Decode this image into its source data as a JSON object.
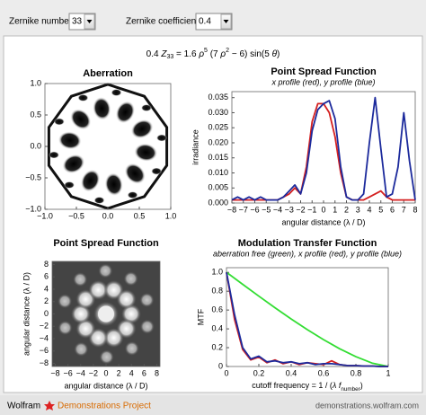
{
  "controls": {
    "zernike_number_label": "Zernike number",
    "zernike_number": "33",
    "zernike_coefficient_label": "Zernike coefficient",
    "zernike_coefficient": "0.4"
  },
  "formula": [
    {
      "text": "0.4 "
    },
    {
      "text": "Z",
      "italic": true
    },
    {
      "text": "33",
      "script": "sub"
    },
    {
      "text": " = 1.6 "
    },
    {
      "text": "ρ",
      "italic": true
    },
    {
      "text": "5",
      "script": "sup"
    },
    {
      "text": " (7 "
    },
    {
      "text": "ρ",
      "italic": true
    },
    {
      "text": "2",
      "script": "sup"
    },
    {
      "text": " − 6) sin(5 "
    },
    {
      "text": "θ",
      "italic": true
    },
    {
      "text": ")"
    }
  ],
  "chart_data": [
    {
      "type": "density",
      "title": "Aberration",
      "xlim": [
        -1,
        1
      ],
      "ylim": [
        -1,
        1
      ],
      "xticks": [
        {
          "value": -1,
          "label": "−1.0"
        },
        {
          "value": -0.5,
          "label": "−0.5"
        },
        {
          "value": 0,
          "label": "0.0"
        },
        {
          "value": 0.5,
          "label": "0.5"
        },
        {
          "value": 1,
          "label": "1.0"
        }
      ],
      "yticks": [
        {
          "value": -1,
          "label": "−1.0"
        },
        {
          "value": -0.5,
          "label": "−0.5"
        },
        {
          "value": 0,
          "label": "0.0"
        },
        {
          "value": 0.5,
          "label": "0.5"
        },
        {
          "value": 1,
          "label": "1.0"
        }
      ]
    },
    {
      "type": "line",
      "title": "Point Spread Function",
      "subtitle": "x profile (red), y profile (blue)",
      "xlabel": "angular distance (λ / D)",
      "ylabel": "irradiance",
      "xlim": [
        -8,
        8
      ],
      "ylim": [
        0,
        0.037
      ],
      "xticks": [
        {
          "value": -8,
          "label": "−8"
        },
        {
          "value": -7,
          "label": "−7"
        },
        {
          "value": -6,
          "label": "−6"
        },
        {
          "value": -5,
          "label": "−5"
        },
        {
          "value": -4,
          "label": "−4"
        },
        {
          "value": -3,
          "label": "−3"
        },
        {
          "value": -2,
          "label": "−2"
        },
        {
          "value": -1,
          "label": "−1"
        },
        0,
        1,
        2,
        3,
        4,
        5,
        6,
        7,
        8
      ],
      "yticks": [
        {
          "value": 0,
          "label": "0.000"
        },
        0.005,
        {
          "value": 0.01,
          "label": "0.010"
        },
        0.015,
        {
          "value": 0.02,
          "label": "0.020"
        },
        0.025,
        {
          "value": 0.03,
          "label": "0.030"
        },
        0.035
      ],
      "series": [
        {
          "color": "#d42020",
          "x": [
            -8,
            -7.5,
            -7,
            -6.5,
            -6,
            -5.5,
            -5,
            -4.5,
            -4,
            -3.5,
            -3,
            -2.5,
            -2,
            -1.5,
            -1,
            -0.5,
            0,
            0.5,
            1,
            1.5,
            2,
            2.5,
            3,
            3.5,
            4,
            4.5,
            5,
            5.5,
            6,
            6.5,
            7,
            7.5,
            8
          ],
          "values": [
            0.001,
            0.001,
            0.001,
            0.001,
            0.001,
            0.001,
            0.001,
            0.001,
            0.001,
            0.002,
            0.003,
            0.005,
            0.003,
            0.012,
            0.027,
            0.033,
            0.033,
            0.03,
            0.022,
            0.01,
            0.002,
            0.001,
            0.001,
            0.001,
            0.002,
            0.003,
            0.004,
            0.002,
            0.001,
            0.001,
            0.001,
            0.001,
            0.001
          ]
        },
        {
          "color": "#1c2a9c",
          "x": [
            -8,
            -7.5,
            -7,
            -6.5,
            -6,
            -5.5,
            -5,
            -4.5,
            -4,
            -3.5,
            -3,
            -2.5,
            -2,
            -1.5,
            -1,
            -0.5,
            0,
            0.5,
            1,
            1.5,
            2,
            2.5,
            3,
            3.5,
            4,
            4.5,
            5,
            5.5,
            6,
            6.5,
            7,
            7.5,
            8
          ],
          "values": [
            0.001,
            0.002,
            0.001,
            0.002,
            0.001,
            0.002,
            0.001,
            0.001,
            0.001,
            0.002,
            0.004,
            0.006,
            0.003,
            0.01,
            0.024,
            0.031,
            0.033,
            0.034,
            0.028,
            0.012,
            0.002,
            0.001,
            0.001,
            0.003,
            0.02,
            0.035,
            0.018,
            0.002,
            0.003,
            0.012,
            0.03,
            0.014,
            0.001
          ]
        }
      ]
    },
    {
      "type": "density",
      "title": "Point Spread Function",
      "xlabel": "angular distance (λ / D)",
      "ylabel": "angular distance (λ / D)",
      "xlim": [
        -8.5,
        8.5
      ],
      "ylim": [
        -8.5,
        8.5
      ],
      "xticks": [
        {
          "value": -8,
          "label": "−8"
        },
        {
          "value": -6,
          "label": "−6"
        },
        {
          "value": -4,
          "label": "−4"
        },
        {
          "value": -2,
          "label": "−2"
        },
        0,
        2,
        4,
        6,
        8
      ],
      "yticks": [
        {
          "value": -8,
          "label": "−8"
        },
        {
          "value": -6,
          "label": "−6"
        },
        {
          "value": -4,
          "label": "−4"
        },
        {
          "value": -2,
          "label": "−2"
        },
        0,
        2,
        4,
        6,
        8
      ]
    },
    {
      "type": "line",
      "title": "Modulation Transfer Function",
      "subtitle": "aberration free (green), x profile (red), y profile (blue)",
      "xlabel": [
        {
          "text": "cutoff frequency = 1 / ("
        },
        {
          "text": "λ",
          "italic": true
        },
        {
          "text": " "
        },
        {
          "text": "f",
          "italic": true
        },
        {
          "text": "number",
          "script": "sub"
        },
        {
          "text": ")"
        }
      ],
      "ylabel": "MTF",
      "xlim": [
        0,
        1
      ],
      "ylim": [
        0,
        1.05
      ],
      "xticks": [
        0,
        0.2,
        0.4,
        0.6,
        0.8,
        1
      ],
      "yticks": [
        0,
        0.2,
        0.4,
        0.6,
        0.8,
        {
          "value": 1,
          "label": "1.0"
        }
      ],
      "series": [
        {
          "color": "#33dd33",
          "x": [
            0,
            0.1,
            0.2,
            0.3,
            0.4,
            0.5,
            0.6,
            0.7,
            0.8,
            0.9,
            1
          ],
          "values": [
            1,
            0.873,
            0.747,
            0.624,
            0.505,
            0.391,
            0.285,
            0.188,
            0.104,
            0.036,
            0
          ]
        },
        {
          "color": "#d42020",
          "x": [
            0,
            0.05,
            0.1,
            0.15,
            0.2,
            0.25,
            0.3,
            0.35,
            0.4,
            0.45,
            0.5,
            0.55,
            0.6,
            0.65,
            0.7,
            0.75,
            0.8,
            0.85,
            0.9,
            0.95,
            1
          ],
          "values": [
            1,
            0.5,
            0.18,
            0.07,
            0.1,
            0.04,
            0.07,
            0.03,
            0.05,
            0.02,
            0.04,
            0.03,
            0.02,
            0.06,
            0.02,
            0.01,
            0.01,
            0.005,
            0.005,
            0,
            0
          ]
        },
        {
          "color": "#1c2a9c",
          "x": [
            0,
            0.05,
            0.1,
            0.15,
            0.2,
            0.25,
            0.3,
            0.35,
            0.4,
            0.45,
            0.5,
            0.55,
            0.6,
            0.65,
            0.7,
            0.75,
            0.8,
            0.85,
            0.9,
            0.95,
            1
          ],
          "values": [
            1,
            0.55,
            0.2,
            0.08,
            0.11,
            0.05,
            0.06,
            0.04,
            0.05,
            0.03,
            0.04,
            0.02,
            0.03,
            0.03,
            0.02,
            0.01,
            0.01,
            0.005,
            0.005,
            0,
            0
          ]
        }
      ]
    }
  ],
  "footer": {
    "brand": "Wolfram",
    "project": "Demonstrations Project",
    "url": "demonstrations.wolfram.com"
  }
}
